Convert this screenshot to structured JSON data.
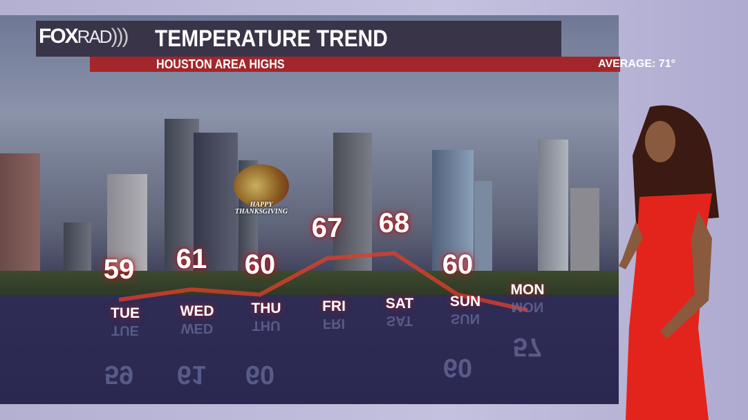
{
  "header": {
    "logo": "FOXRAD",
    "logo_fox": "FOX",
    "logo_rad": "RAD",
    "title": "TEMPERATURE TREND",
    "subtitle": "HOUSTON AREA HIGHS",
    "average": "AVERAGE: 71°"
  },
  "badge": {
    "line1": "HAPPY",
    "line2": "THANKSGIVING"
  },
  "days": [
    {
      "day": "TUE",
      "temp": "59"
    },
    {
      "day": "WED",
      "temp": "61"
    },
    {
      "day": "THU",
      "temp": "60"
    },
    {
      "day": "FRI",
      "temp": "67"
    },
    {
      "day": "SAT",
      "temp": "68"
    },
    {
      "day": "SUN",
      "temp": "60"
    },
    {
      "day": "MON",
      "temp": "57"
    }
  ],
  "colors": {
    "accent_red": "#a3262b",
    "title_bar": "#3a3448",
    "trend_line": "#d8402a"
  },
  "chart_data": {
    "type": "line",
    "title": "TEMPERATURE TREND",
    "subtitle": "HOUSTON AREA HIGHS",
    "categories": [
      "TUE",
      "WED",
      "THU",
      "FRI",
      "SAT",
      "SUN",
      "MON"
    ],
    "values": [
      59,
      61,
      60,
      67,
      68,
      60,
      57
    ],
    "annotation": "AVERAGE: 71°",
    "grid": false
  }
}
